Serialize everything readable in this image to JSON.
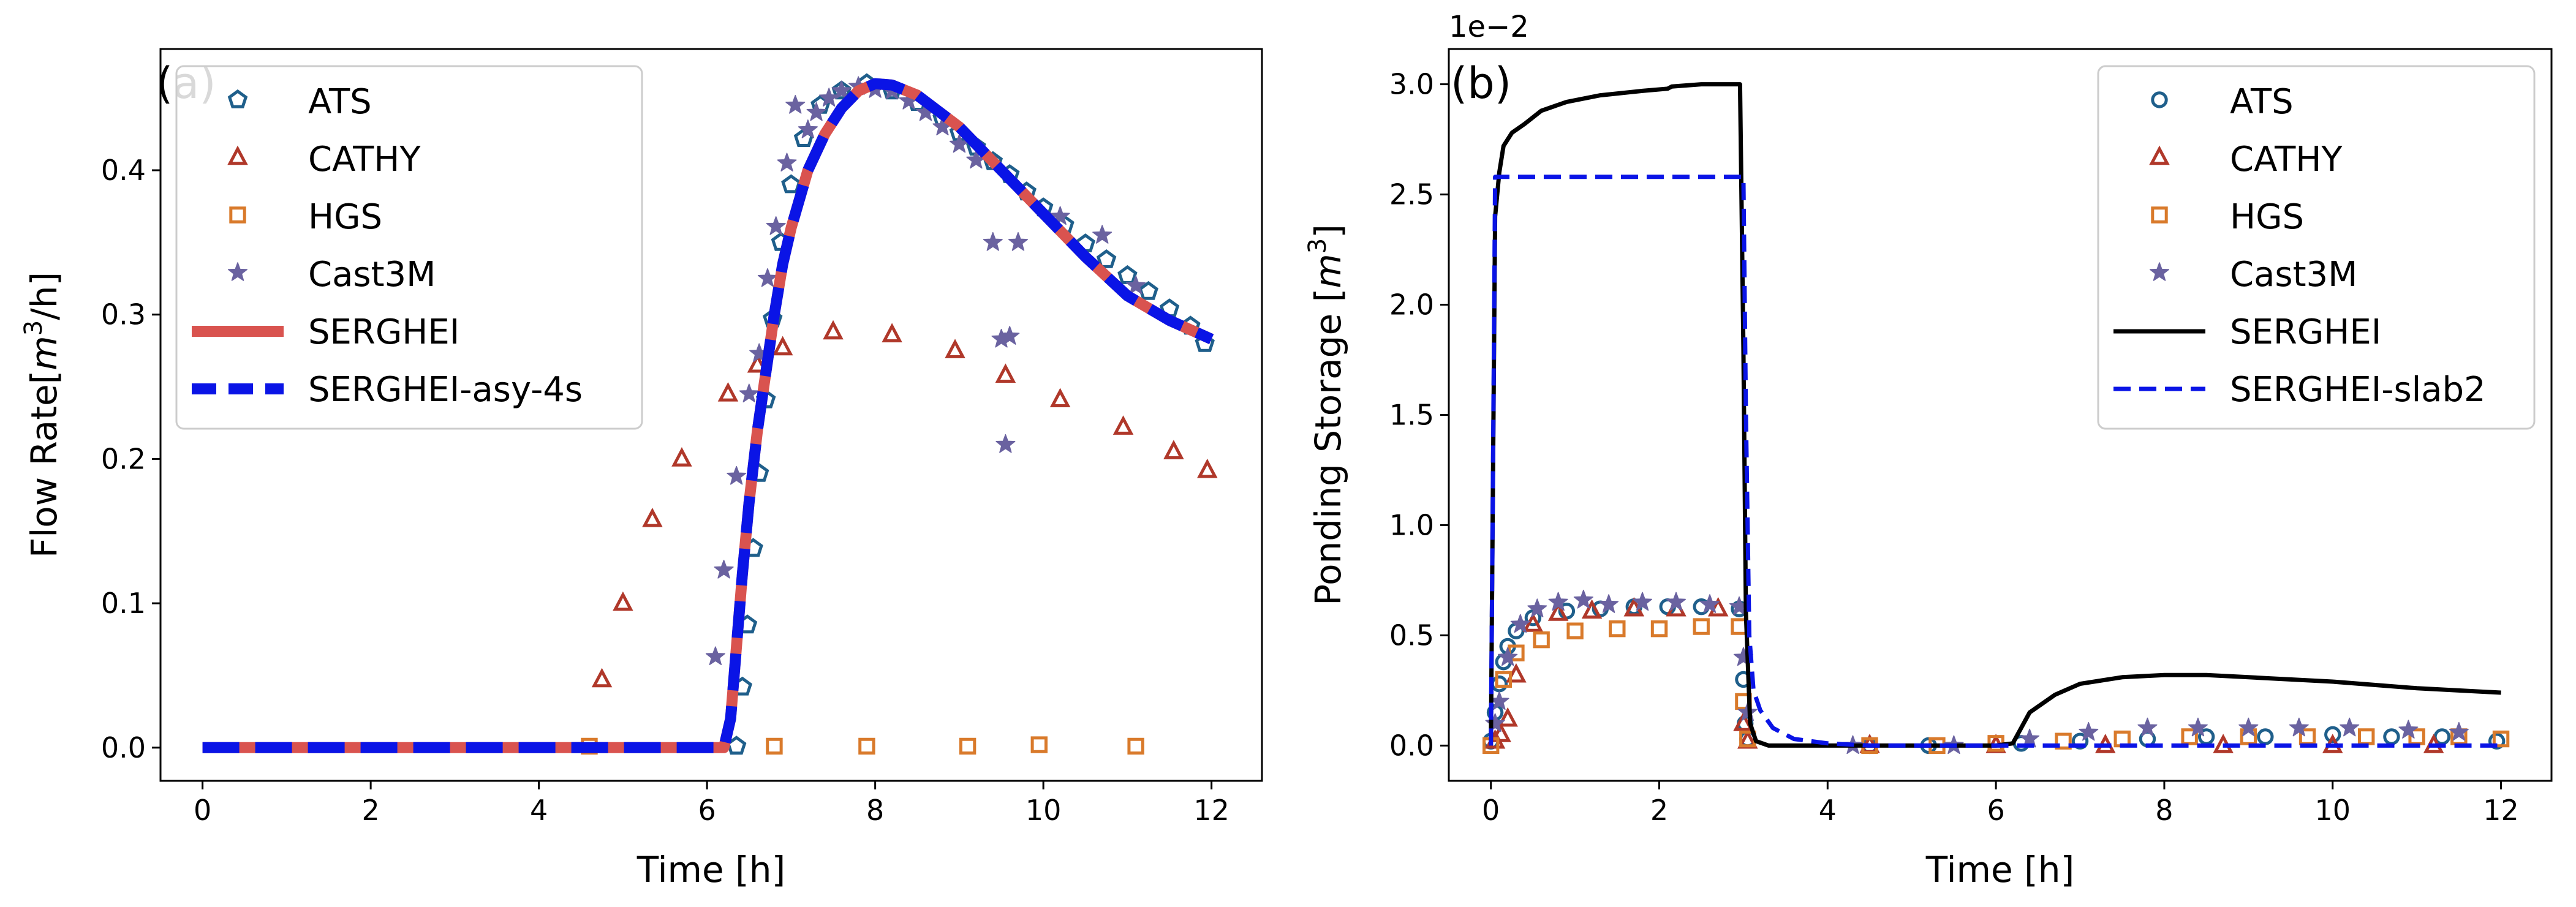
{
  "colors": {
    "ATS": "#1f5f8b",
    "CATHY": "#b0382a",
    "HGS": "#d97a2b",
    "Cast3M": "#6a62a0",
    "SERGHEI_a": "#d9534f",
    "SERGHEI_asy": "#0a14e6",
    "SERGHEI_b": "#000000",
    "SERGHEI_slab2": "#0a14e6"
  },
  "chart_data": [
    {
      "type": "scatter",
      "panel_label": "(a)",
      "xlabel": "Time [h]",
      "ylabel_parts": [
        "Flow Rate[",
        "m",
        "3",
        "/h]"
      ],
      "xlim": [
        -0.5,
        12.6
      ],
      "ylim": [
        -0.023,
        0.484
      ],
      "xticks": [
        0,
        2,
        4,
        6,
        8,
        10,
        12
      ],
      "yticks": [
        0.0,
        0.1,
        0.2,
        0.3,
        0.4
      ],
      "ytick_labels": [
        "0.0",
        "0.1",
        "0.2",
        "0.3",
        "0.4"
      ],
      "legend_position": "upper-left",
      "series": [
        {
          "name": "ATS",
          "marker": "pentagon",
          "colorKey": "ATS",
          "x": [
            6.35,
            6.42,
            6.48,
            6.55,
            6.62,
            6.7,
            6.78,
            6.88,
            7.0,
            7.15,
            7.35,
            7.6,
            7.9,
            8.2,
            8.5,
            8.8,
            9.0,
            9.2,
            9.4,
            9.6,
            9.8,
            10.0,
            10.25,
            10.5,
            10.75,
            11.0,
            11.25,
            11.5,
            11.75,
            11.92
          ],
          "y": [
            0.001,
            0.042,
            0.085,
            0.138,
            0.19,
            0.241,
            0.297,
            0.35,
            0.39,
            0.422,
            0.445,
            0.455,
            0.46,
            0.455,
            0.447,
            0.436,
            0.426,
            0.416,
            0.406,
            0.397,
            0.385,
            0.374,
            0.362,
            0.349,
            0.338,
            0.327,
            0.316,
            0.304,
            0.292,
            0.28
          ]
        },
        {
          "name": "CATHY",
          "marker": "triangle",
          "colorKey": "CATHY",
          "x": [
            4.75,
            5.0,
            5.35,
            5.7,
            6.25,
            6.6,
            6.9,
            7.5,
            8.2,
            8.95,
            9.55,
            10.2,
            10.95,
            11.55,
            11.95
          ],
          "y": [
            0.047,
            0.1,
            0.158,
            0.2,
            0.245,
            0.265,
            0.277,
            0.288,
            0.286,
            0.275,
            0.258,
            0.241,
            0.222,
            0.205,
            0.192
          ]
        },
        {
          "name": "HGS",
          "marker": "square",
          "colorKey": "HGS",
          "x": [
            4.6,
            6.8,
            7.9,
            9.1,
            9.95,
            11.1
          ],
          "y": [
            0.001,
            0.001,
            0.001,
            0.001,
            0.002,
            0.001
          ]
        },
        {
          "name": "Cast3M",
          "marker": "star",
          "colorKey": "Cast3M",
          "x": [
            6.1,
            6.2,
            6.35,
            6.5,
            6.62,
            6.72,
            6.82,
            6.95,
            7.05,
            7.2,
            7.3,
            7.45,
            7.6,
            7.8,
            8.0,
            8.2,
            8.4,
            8.6,
            8.8,
            9.0,
            9.2,
            9.4,
            9.5,
            9.55,
            9.6,
            9.7,
            10.2,
            10.7,
            11.1
          ],
          "y": [
            0.063,
            0.123,
            0.188,
            0.245,
            0.273,
            0.325,
            0.361,
            0.405,
            0.445,
            0.428,
            0.44,
            0.45,
            0.455,
            0.458,
            0.456,
            0.455,
            0.448,
            0.44,
            0.43,
            0.418,
            0.407,
            0.35,
            0.283,
            0.21,
            0.285,
            0.35,
            0.368,
            0.355,
            0.32
          ]
        },
        {
          "name": "SERGHEI",
          "line": "solid",
          "width": 18,
          "colorKey": "SERGHEI_a",
          "x": [
            0,
            6.2,
            6.28,
            6.35,
            6.42,
            6.5,
            6.6,
            6.7,
            6.8,
            6.9,
            7.0,
            7.2,
            7.4,
            7.6,
            7.8,
            8.0,
            8.2,
            8.5,
            9.0,
            9.5,
            10.0,
            10.5,
            11.0,
            11.5,
            12.0
          ],
          "y": [
            0,
            0,
            0.02,
            0.07,
            0.12,
            0.17,
            0.22,
            0.26,
            0.3,
            0.335,
            0.36,
            0.4,
            0.425,
            0.443,
            0.455,
            0.46,
            0.459,
            0.452,
            0.43,
            0.4,
            0.37,
            0.34,
            0.313,
            0.296,
            0.283
          ]
        },
        {
          "name": "SERGHEI-asy-4s",
          "line": "dashed",
          "width": 18,
          "colorKey": "SERGHEI_asy",
          "x": [
            0,
            6.2,
            6.28,
            6.35,
            6.42,
            6.5,
            6.6,
            6.7,
            6.8,
            6.9,
            7.0,
            7.2,
            7.4,
            7.6,
            7.8,
            8.0,
            8.2,
            8.5,
            9.0,
            9.5,
            10.0,
            10.5,
            11.0,
            11.5,
            12.0
          ],
          "y": [
            0,
            0,
            0.02,
            0.07,
            0.12,
            0.17,
            0.22,
            0.26,
            0.3,
            0.335,
            0.36,
            0.4,
            0.425,
            0.443,
            0.455,
            0.46,
            0.459,
            0.452,
            0.43,
            0.4,
            0.37,
            0.34,
            0.313,
            0.296,
            0.283
          ]
        }
      ]
    },
    {
      "type": "scatter",
      "panel_label": "(b)",
      "xlabel": "Time [h]",
      "ylabel_parts": [
        "Ponding Storage [",
        "m",
        "3",
        "]"
      ],
      "offset_label": "1e−2",
      "xlim": [
        -0.5,
        12.6
      ],
      "ylim": [
        -0.0016,
        0.0316
      ],
      "xticks": [
        0,
        2,
        4,
        6,
        8,
        10,
        12
      ],
      "yticks": [
        0,
        0.005,
        0.01,
        0.015,
        0.02,
        0.025,
        0.03
      ],
      "ytick_labels": [
        "0.0",
        "0.5",
        "1.0",
        "1.5",
        "2.0",
        "2.5",
        "3.0"
      ],
      "legend_position": "upper-right",
      "series": [
        {
          "name": "ATS",
          "marker": "circle",
          "colorKey": "ATS",
          "x": [
            0.0,
            0.05,
            0.1,
            0.15,
            0.2,
            0.3,
            0.5,
            0.9,
            1.3,
            1.7,
            2.1,
            2.5,
            2.95,
            3.0,
            3.02,
            3.05,
            4.5,
            5.2,
            6.3,
            7.0,
            7.8,
            8.5,
            9.2,
            10.0,
            10.7,
            11.3,
            11.95
          ],
          "y": [
            0.0002,
            0.0015,
            0.0028,
            0.0038,
            0.0045,
            0.0052,
            0.0058,
            0.0061,
            0.0062,
            0.0063,
            0.0063,
            0.0063,
            0.0062,
            0.003,
            0.001,
            0.0003,
            0.0,
            0.0,
            0.0001,
            0.0002,
            0.0003,
            0.0004,
            0.0004,
            0.0005,
            0.0004,
            0.0004,
            0.0002
          ]
        },
        {
          "name": "CATHY",
          "marker": "triangle",
          "colorKey": "CATHY",
          "x": [
            0.05,
            0.12,
            0.2,
            0.3,
            0.5,
            0.8,
            1.2,
            1.7,
            2.2,
            2.7,
            3.0,
            3.05,
            4.5,
            6.0,
            7.3,
            8.7,
            10.0,
            11.2
          ],
          "y": [
            0.0002,
            0.0005,
            0.0012,
            0.0032,
            0.0055,
            0.006,
            0.0061,
            0.0062,
            0.0062,
            0.0062,
            0.001,
            0.0002,
            0.0,
            0.0,
            0.0,
            0.0,
            0.0,
            0.0
          ]
        },
        {
          "name": "HGS",
          "marker": "square",
          "colorKey": "HGS",
          "x": [
            0.0,
            0.15,
            0.3,
            0.6,
            1.0,
            1.5,
            2.0,
            2.5,
            2.95,
            3.0,
            3.05,
            4.5,
            5.3,
            6.0,
            6.8,
            7.5,
            8.3,
            9.0,
            9.7,
            10.4,
            11.0,
            11.5,
            12.0
          ],
          "y": [
            0.0,
            0.003,
            0.0042,
            0.0048,
            0.0052,
            0.0053,
            0.0053,
            0.0054,
            0.0054,
            0.002,
            0.0003,
            0.0,
            0.0,
            0.0001,
            0.0002,
            0.0003,
            0.0004,
            0.0004,
            0.0004,
            0.0004,
            0.0004,
            0.0004,
            0.0003
          ]
        },
        {
          "name": "Cast3M",
          "marker": "star",
          "colorKey": "Cast3M",
          "x": [
            0.05,
            0.1,
            0.2,
            0.35,
            0.55,
            0.8,
            1.1,
            1.4,
            1.8,
            2.2,
            2.6,
            2.95,
            3.0,
            3.05,
            4.3,
            5.5,
            6.4,
            7.1,
            7.8,
            8.4,
            9.0,
            9.6,
            10.2,
            10.9,
            11.5
          ],
          "y": [
            0.001,
            0.002,
            0.004,
            0.0055,
            0.0062,
            0.0065,
            0.0066,
            0.0064,
            0.0065,
            0.0065,
            0.0064,
            0.0063,
            0.004,
            0.0015,
            0.0,
            0.0,
            0.0003,
            0.0006,
            0.0008,
            0.0008,
            0.0008,
            0.0008,
            0.0008,
            0.0007,
            0.0006
          ]
        },
        {
          "name": "SERGHEI",
          "line": "solid",
          "width": 7,
          "colorKey": "SERGHEI_b",
          "x": [
            0,
            0.02,
            0.05,
            0.1,
            0.15,
            0.25,
            0.4,
            0.6,
            0.9,
            1.3,
            1.8,
            2.1,
            2.15,
            2.5,
            2.95,
            2.96,
            3.0,
            3.03,
            3.08,
            3.15,
            3.3,
            3.6,
            4.0,
            6.0,
            6.2,
            6.4,
            6.7,
            7.0,
            7.5,
            8.0,
            8.5,
            9.0,
            10.0,
            11.0,
            12.0
          ],
          "y": [
            0,
            0.01,
            0.024,
            0.026,
            0.0272,
            0.0278,
            0.0282,
            0.0288,
            0.0292,
            0.0295,
            0.0297,
            0.0298,
            0.0299,
            0.03,
            0.03,
            0.03,
            0.018,
            0.006,
            0.001,
            0.0002,
            0,
            0,
            0,
            0,
            0.0001,
            0.0015,
            0.0023,
            0.0028,
            0.0031,
            0.0032,
            0.0032,
            0.0031,
            0.0029,
            0.0026,
            0.0024
          ]
        },
        {
          "name": "SERGHEI-slab2",
          "line": "dashed",
          "width": 7,
          "colorKey": "SERGHEI_slab2",
          "x": [
            0,
            0.03,
            0.05,
            2.95,
            3.0,
            3.03,
            3.07,
            3.12,
            3.2,
            3.35,
            3.6,
            4.0,
            4.5,
            5.0,
            6.0,
            12.0
          ],
          "y": [
            0,
            0.015,
            0.0258,
            0.0258,
            0.0258,
            0.015,
            0.005,
            0.0025,
            0.0016,
            0.0008,
            0.0003,
            0.0001,
            0,
            0,
            0,
            0
          ]
        }
      ]
    }
  ]
}
